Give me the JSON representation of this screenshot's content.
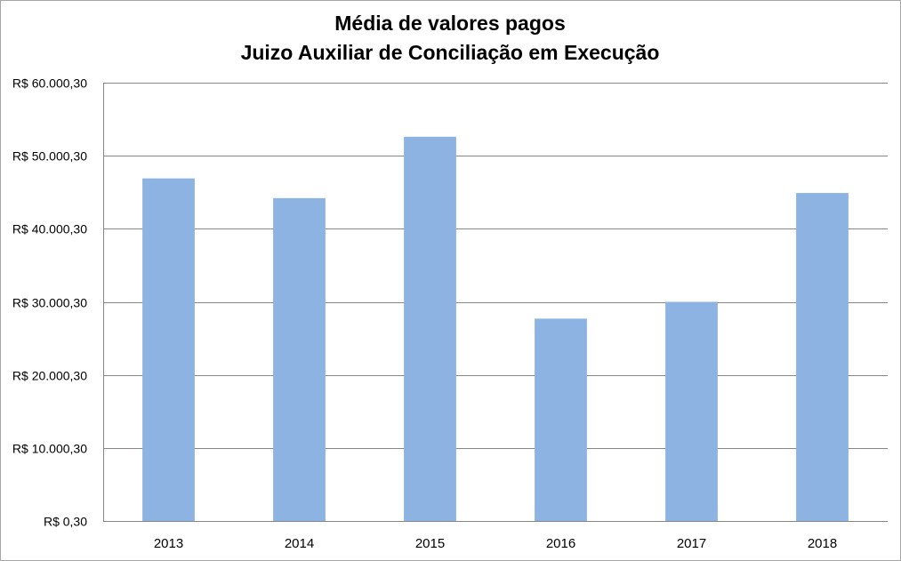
{
  "chart_data": {
    "type": "bar",
    "title": [
      "Média de valores pagos",
      "Juizo Auxiliar de Conciliação em Execução"
    ],
    "xlabel": "",
    "ylabel": "",
    "categories": [
      "2013",
      "2014",
      "2015",
      "2016",
      "2017",
      "2018"
    ],
    "values": [
      46900,
      44200,
      52600,
      27700,
      30000,
      44900
    ],
    "ylim": [
      0.3,
      60000.3
    ],
    "yticks": [
      0.3,
      10000.3,
      20000.3,
      30000.3,
      40000.3,
      50000.3,
      60000.3
    ],
    "ytick_labels": [
      "R$ 0,30",
      "R$ 10.000,30",
      "R$ 20.000,30",
      "R$ 30.000,30",
      "R$ 40.000,30",
      "R$ 50.000,30",
      "R$ 60.000,30"
    ],
    "grid": true,
    "legend": "none",
    "bar_color": "#8db3e2",
    "gridline_color": "#868686"
  }
}
